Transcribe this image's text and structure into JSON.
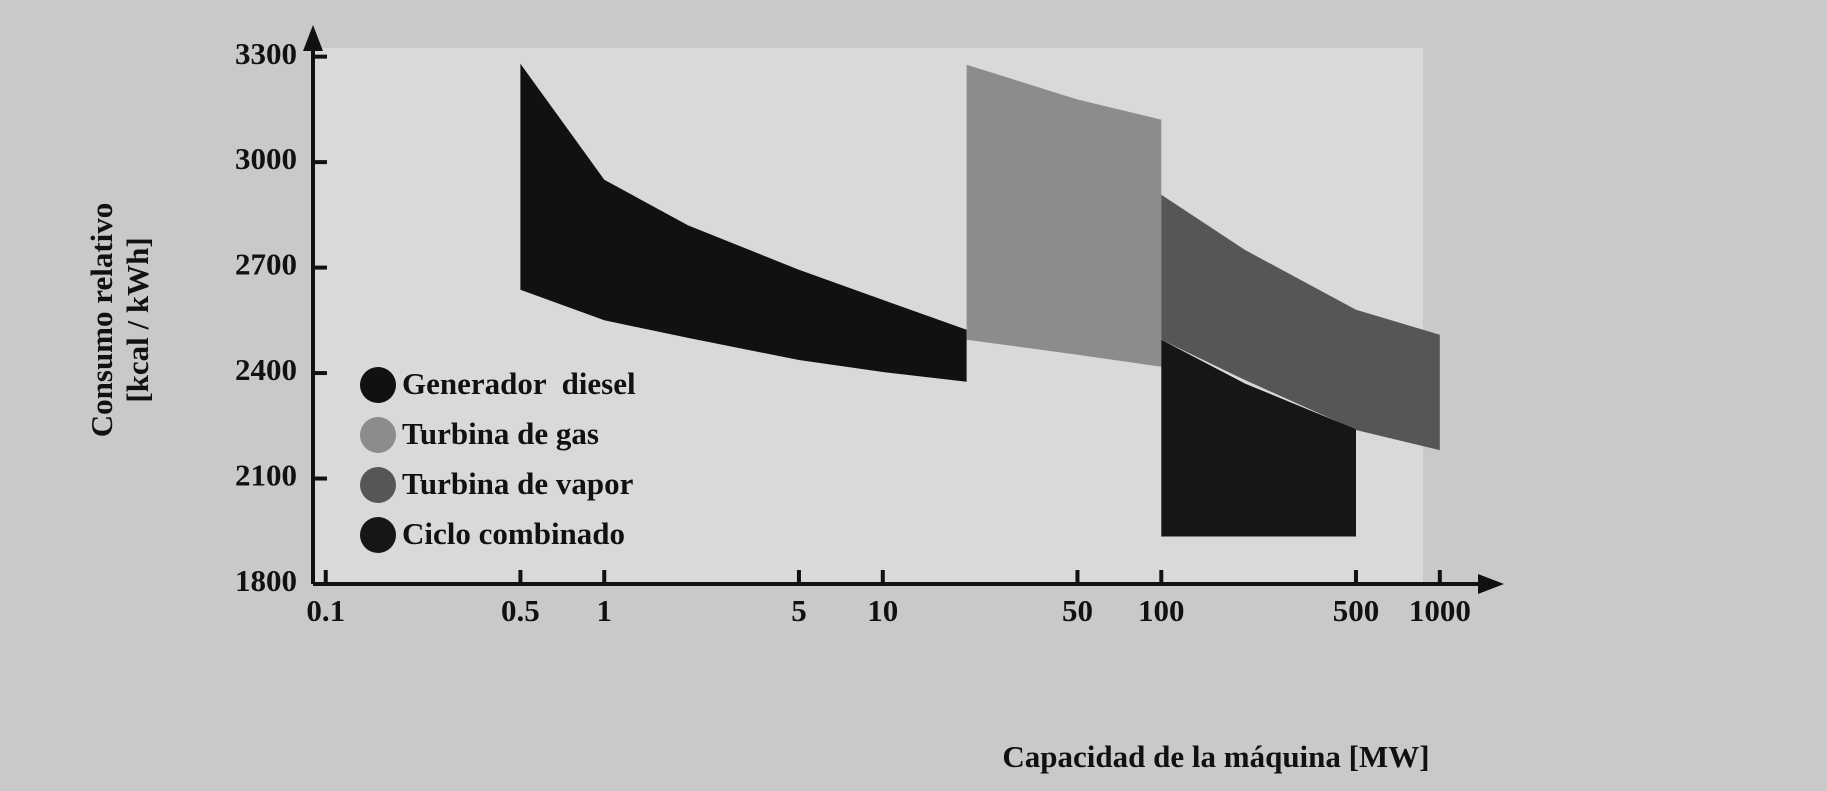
{
  "chart_data": {
    "type": "band",
    "xlabel": "Capacidad de la máquina [MW]",
    "ylabel": [
      "Consumo relativo",
      "[kcal / kWh]"
    ],
    "xscale": "log",
    "xlim": [
      0.09,
      1700
    ],
    "ylim": [
      1800,
      3390
    ],
    "xticks": [
      0.1,
      0.5,
      1,
      5,
      10,
      50,
      100,
      500,
      1000
    ],
    "yticks": [
      1800,
      2100,
      2400,
      2700,
      3000,
      3300
    ],
    "legend": "lower left",
    "series": [
      {
        "name": "Generador  diesel",
        "color": "#111111",
        "x": [
          0.5,
          1,
          2,
          5,
          10,
          20
        ],
        "upper": [
          3280,
          2950,
          2820,
          2694,
          2608,
          2523
        ],
        "lower": [
          2637,
          2550,
          2500,
          2437,
          2403,
          2375
        ]
      },
      {
        "name": "Turbina de gas",
        "color": "#8c8c8c",
        "x": [
          20,
          50,
          100
        ],
        "upper": [
          3277,
          3178,
          3121
        ],
        "lower": [
          2495,
          2452,
          2418
        ]
      },
      {
        "name": "Turbina de vapor",
        "color": "#565656",
        "x": [
          100,
          200,
          500,
          1000
        ],
        "upper": [
          2907,
          2750,
          2580,
          2509
        ],
        "lower": [
          2495,
          2380,
          2238,
          2181
        ]
      },
      {
        "name": "Ciclo combinado",
        "color": "#161616",
        "x": [
          100,
          200,
          500
        ],
        "upper": [
          2495,
          2370,
          2240
        ],
        "lower": [
          1935,
          1935,
          1935
        ]
      }
    ]
  }
}
